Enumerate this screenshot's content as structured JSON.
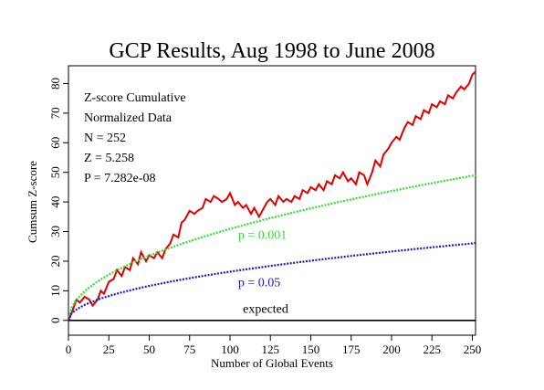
{
  "chart_data": {
    "type": "line",
    "title": "GCP Results, Aug 1998 to June 2008",
    "xlabel": "Number of Global Events",
    "ylabel": "Cumsum Z-score",
    "xlim": [
      0,
      252
    ],
    "ylim": [
      -5,
      86
    ],
    "xticks": [
      0,
      25,
      50,
      75,
      100,
      125,
      150,
      175,
      200,
      225,
      250
    ],
    "yticks": [
      0,
      10,
      20,
      30,
      40,
      50,
      60,
      70,
      80
    ],
    "grid": false,
    "legend": "none",
    "stats_text": [
      "Z-score Cumulative",
      "Normalized Data",
      "N = 252",
      "Z = 5.258",
      "P = 7.282e-08"
    ],
    "series": [
      {
        "name": "",
        "color": "#e00000",
        "style": "solid",
        "x": [
          0,
          3,
          5,
          7,
          10,
          13,
          15,
          18,
          20,
          22,
          25,
          28,
          30,
          33,
          35,
          38,
          40,
          43,
          45,
          48,
          50,
          53,
          55,
          58,
          60,
          63,
          65,
          68,
          70,
          72,
          75,
          78,
          80,
          83,
          85,
          88,
          90,
          93,
          95,
          98,
          100,
          103,
          105,
          108,
          110,
          113,
          115,
          118,
          120,
          123,
          125,
          128,
          130,
          133,
          135,
          138,
          140,
          143,
          145,
          148,
          150,
          153,
          155,
          158,
          160,
          163,
          165,
          168,
          170,
          173,
          175,
          178,
          180,
          183,
          185,
          188,
          190,
          193,
          195,
          198,
          200,
          203,
          205,
          208,
          210,
          213,
          215,
          218,
          220,
          223,
          225,
          228,
          230,
          233,
          235,
          238,
          240,
          243,
          245,
          248,
          250,
          252
        ],
        "y": [
          0,
          4,
          7,
          6,
          8,
          7,
          5,
          7,
          10,
          9,
          13,
          14,
          17,
          15,
          18,
          17,
          21,
          19,
          23,
          20,
          22,
          21,
          23,
          21,
          24,
          26,
          29,
          28,
          33,
          34,
          37,
          36,
          37,
          38,
          41,
          40,
          42,
          41,
          40,
          41,
          43,
          39,
          40,
          38,
          39,
          36,
          38,
          35,
          37,
          40,
          41,
          39,
          42,
          40,
          41,
          40,
          42,
          41,
          44,
          43,
          45,
          44,
          46,
          44,
          47,
          46,
          49,
          48,
          50,
          47,
          48,
          46,
          50,
          49,
          46,
          50,
          54,
          52,
          56,
          58,
          60,
          62,
          61,
          65,
          67,
          66,
          69,
          68,
          71,
          70,
          73,
          72,
          74,
          73,
          76,
          75,
          77,
          79,
          78,
          80,
          83,
          84
        ]
      },
      {
        "name": "",
        "color": "#33dd33",
        "style": "dashed",
        "envelope_p": 0.001
      },
      {
        "name": "",
        "color": "#1a1ac8",
        "style": "dashed",
        "envelope_p": 0.05
      },
      {
        "name": "",
        "color": "#000000",
        "style": "solid",
        "constant": 0
      }
    ],
    "annotations": [
      {
        "text": "p = 0.001",
        "x": 105,
        "y": 27.5,
        "color": "#33dd33"
      },
      {
        "text": "p = 0.05",
        "x": 105,
        "y": 11.5,
        "color": "#1a1ac8"
      },
      {
        "text": "expected",
        "x": 108,
        "y": 2.5,
        "color": "#000000"
      }
    ]
  }
}
